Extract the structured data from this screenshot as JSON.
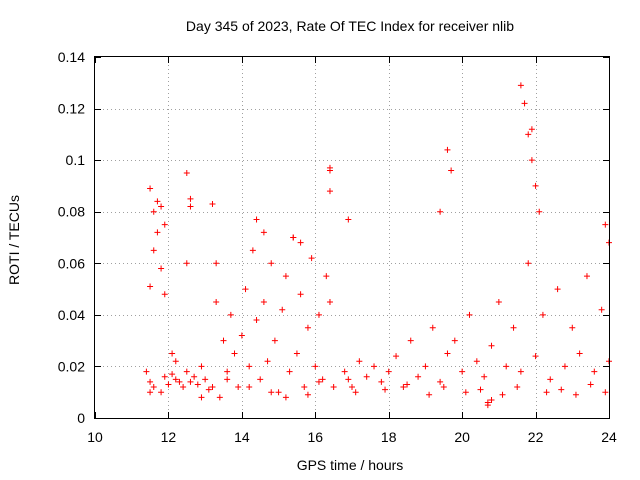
{
  "chart_data": {
    "type": "scatter",
    "title": "Day 345 of 2023, Rate Of TEC Index for receiver nlib",
    "xlabel": "GPS time / hours",
    "ylabel": "ROTI / TECUs",
    "xlim": [
      10,
      24
    ],
    "ylim": [
      0,
      0.14
    ],
    "xticks": [
      10,
      12,
      14,
      16,
      18,
      20,
      22,
      24
    ],
    "xtick_labels": [
      "10",
      "12",
      "14",
      "16",
      "18",
      "20",
      "22",
      "24"
    ],
    "yticks": [
      0,
      0.02,
      0.04,
      0.06,
      0.08,
      0.1,
      0.12,
      0.14
    ],
    "ytick_labels": [
      "0",
      "0.02",
      "0.04",
      "0.06",
      "0.08",
      "0.1",
      "0.12",
      "0.14"
    ],
    "grid": true,
    "marker": "plus",
    "color": "#ff0000",
    "series": [
      {
        "name": "ROTI",
        "x": [
          11.4,
          11.5,
          11.5,
          11.6,
          11.6,
          11.7,
          11.8,
          11.8,
          11.9,
          11.9,
          12.0,
          12.1,
          12.2,
          12.2,
          12.3,
          12.4,
          12.5,
          12.5,
          12.6,
          12.7,
          12.8,
          12.9,
          13.0,
          13.1,
          13.2,
          13.3,
          13.4,
          13.5,
          13.6,
          13.7,
          13.8,
          13.9,
          14.0,
          14.1,
          14.2,
          14.3,
          14.4,
          14.5,
          14.6,
          14.7,
          14.8,
          14.9,
          15.0,
          15.1,
          15.2,
          15.3,
          15.4,
          15.5,
          15.6,
          15.7,
          15.8,
          15.9,
          16.0,
          16.1,
          16.2,
          16.3,
          16.4,
          16.5,
          16.8,
          16.9,
          17.0,
          17.2,
          17.4,
          17.6,
          17.8,
          18.0,
          18.2,
          18.4,
          18.6,
          18.8,
          19.0,
          19.2,
          19.4,
          19.6,
          19.8,
          20.0,
          20.2,
          20.4,
          20.6,
          20.8,
          21.0,
          21.2,
          21.4,
          21.6,
          21.8,
          22.0,
          22.2,
          22.4,
          22.6,
          22.8,
          23.0,
          23.2,
          23.4,
          23.6,
          23.8,
          24.0,
          11.5,
          11.6,
          11.7,
          11.8,
          11.9,
          12.5,
          12.6,
          12.6,
          13.2,
          13.3,
          14.4,
          14.6,
          15.4,
          15.6,
          16.4,
          16.4,
          16.4,
          16.9,
          19.4,
          19.6,
          19.7,
          21.6,
          21.7,
          21.8,
          21.9,
          21.9,
          22.0,
          22.1,
          23.9,
          24.0,
          11.5,
          12.1,
          12.9,
          13.6,
          14.2,
          14.8,
          15.2,
          15.8,
          16.1,
          17.1,
          17.9,
          18.5,
          19.1,
          19.5,
          20.1,
          20.5,
          21.1,
          21.5,
          22.3,
          22.7,
          23.1,
          23.5,
          23.9,
          20.7,
          20.7,
          20.8
        ],
        "y": [
          0.018,
          0.014,
          0.051,
          0.012,
          0.065,
          0.072,
          0.01,
          0.058,
          0.016,
          0.048,
          0.013,
          0.017,
          0.015,
          0.022,
          0.014,
          0.012,
          0.018,
          0.06,
          0.014,
          0.016,
          0.013,
          0.02,
          0.015,
          0.011,
          0.012,
          0.045,
          0.008,
          0.03,
          0.015,
          0.04,
          0.025,
          0.012,
          0.032,
          0.05,
          0.02,
          0.065,
          0.038,
          0.015,
          0.045,
          0.022,
          0.06,
          0.03,
          0.01,
          0.042,
          0.055,
          0.018,
          0.07,
          0.025,
          0.048,
          0.012,
          0.035,
          0.062,
          0.02,
          0.04,
          0.015,
          0.055,
          0.045,
          0.012,
          0.018,
          0.015,
          0.012,
          0.022,
          0.016,
          0.02,
          0.014,
          0.018,
          0.024,
          0.012,
          0.03,
          0.016,
          0.02,
          0.035,
          0.014,
          0.025,
          0.03,
          0.018,
          0.04,
          0.022,
          0.016,
          0.028,
          0.045,
          0.02,
          0.035,
          0.018,
          0.06,
          0.024,
          0.04,
          0.015,
          0.05,
          0.02,
          0.035,
          0.025,
          0.055,
          0.018,
          0.042,
          0.022,
          0.089,
          0.08,
          0.084,
          0.082,
          0.075,
          0.095,
          0.085,
          0.082,
          0.083,
          0.06,
          0.077,
          0.072,
          0.07,
          0.068,
          0.097,
          0.096,
          0.088,
          0.077,
          0.08,
          0.104,
          0.096,
          0.129,
          0.122,
          0.11,
          0.112,
          0.1,
          0.09,
          0.08,
          0.075,
          0.068,
          0.01,
          0.025,
          0.008,
          0.018,
          0.012,
          0.01,
          0.008,
          0.009,
          0.014,
          0.01,
          0.011,
          0.013,
          0.009,
          0.012,
          0.01,
          0.011,
          0.009,
          0.012,
          0.01,
          0.011,
          0.009,
          0.013,
          0.01,
          0.006,
          0.005,
          0.007
        ]
      }
    ]
  }
}
